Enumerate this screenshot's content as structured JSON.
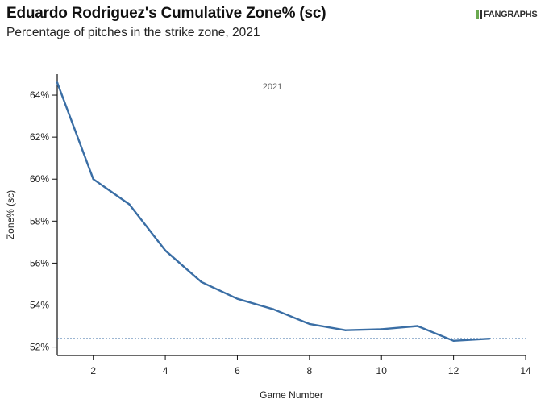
{
  "header": {
    "title": "Eduardo Rodriguez's Cumulative Zone% (sc)",
    "subtitle": "Percentage of pitches in the strike zone, 2021",
    "logo_text": "FANGRAPHS"
  },
  "chart_data": {
    "type": "line",
    "panel_label": "2021",
    "xlabel": "Game Number",
    "ylabel": "Zone% (sc)",
    "xlim": [
      1,
      14
    ],
    "ylim": [
      51.6,
      65.0
    ],
    "x_ticks": [
      2,
      4,
      6,
      8,
      10,
      12,
      14
    ],
    "y_ticks": [
      52,
      54,
      56,
      58,
      60,
      62,
      64
    ],
    "y_tick_labels": [
      "52%",
      "54%",
      "56%",
      "58%",
      "60%",
      "62%",
      "64%"
    ],
    "series": [
      {
        "x": [
          1,
          2,
          3,
          4,
          5,
          6,
          7,
          8,
          9,
          10,
          11,
          12,
          13
        ],
        "y": [
          64.6,
          60.0,
          58.8,
          56.6,
          55.1,
          54.3,
          53.8,
          53.1,
          52.8,
          52.85,
          53.0,
          52.3,
          52.4
        ],
        "color": "#3a6ea5"
      }
    ],
    "reference_line": {
      "y": 52.4,
      "style": "dotted",
      "color": "#3a6ea5"
    },
    "grid": false
  }
}
